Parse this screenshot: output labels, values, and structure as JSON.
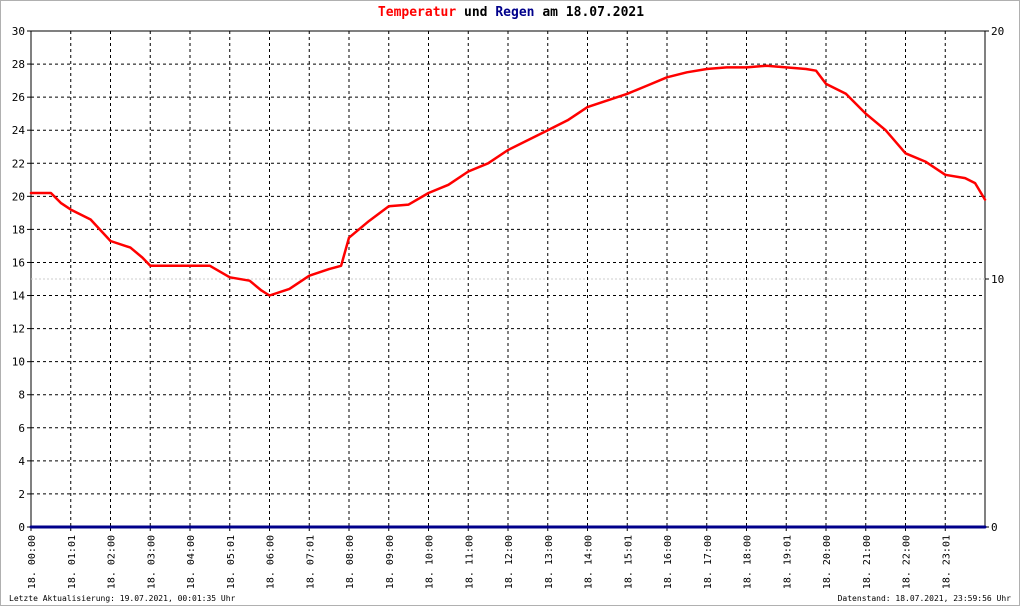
{
  "title": {
    "part1": "Temperatur",
    "part2": "und",
    "part3": "Regen",
    "part4": "am 18.07.2021"
  },
  "footer": {
    "left": "Letzte Aktualisierung: 19.07.2021, 00:01:35 Uhr",
    "right": "Datenstand: 18.07.2021, 23:59:56 Uhr"
  },
  "colors": {
    "temperature": "#ff0000",
    "rain": "#00008b",
    "grid": "#000000",
    "reference_line": "#cccccc"
  },
  "chart_data": {
    "type": "line",
    "grid": true,
    "x_unit": "hours",
    "xlim": [
      0,
      24
    ],
    "x_tick_labels": [
      "18. 00:00",
      "18. 01:01",
      "18. 02:00",
      "18. 03:00",
      "18. 04:00",
      "18. 05:01",
      "18. 06:00",
      "18. 07:01",
      "18. 08:00",
      "18. 09:00",
      "18. 10:00",
      "18. 11:00",
      "18. 12:00",
      "18. 13:00",
      "18. 14:00",
      "18. 15:01",
      "18. 16:00",
      "18. 17:00",
      "18. 18:00",
      "18. 19:01",
      "18. 20:00",
      "18. 21:00",
      "18. 22:00",
      "18. 23:01"
    ],
    "y_left": {
      "ylim": [
        0,
        30
      ],
      "ticks": [
        0,
        2,
        4,
        6,
        8,
        10,
        12,
        14,
        16,
        18,
        20,
        22,
        24,
        26,
        28,
        30
      ]
    },
    "y_right": {
      "ylim": [
        0,
        20
      ],
      "ticks": [
        0,
        10,
        20
      ]
    },
    "reference_line_right": 10,
    "series": [
      {
        "name": "Temperatur",
        "axis": "left",
        "color": "#ff0000",
        "x": [
          0,
          0.5,
          0.75,
          1.0,
          1.5,
          2.0,
          2.5,
          2.8,
          3.0,
          3.5,
          4.0,
          4.5,
          5.0,
          5.5,
          5.8,
          6.0,
          6.5,
          7.0,
          7.5,
          7.8,
          8.0,
          8.5,
          9.0,
          9.5,
          10.0,
          10.5,
          11.0,
          11.5,
          12.0,
          12.5,
          13.0,
          13.5,
          14.0,
          14.5,
          15.0,
          15.5,
          16.0,
          16.5,
          17.0,
          17.5,
          18.0,
          18.5,
          19.0,
          19.5,
          19.75,
          20.0,
          20.5,
          21.0,
          21.5,
          22.0,
          22.5,
          23.0,
          23.5,
          23.75,
          24.0
        ],
        "values": [
          20.2,
          20.2,
          19.6,
          19.2,
          18.6,
          17.3,
          16.9,
          16.3,
          15.8,
          15.8,
          15.8,
          15.8,
          15.1,
          14.9,
          14.3,
          14.0,
          14.4,
          15.2,
          15.6,
          15.8,
          17.5,
          18.5,
          19.4,
          19.5,
          20.2,
          20.7,
          21.5,
          22.0,
          22.8,
          23.4,
          24.0,
          24.6,
          25.4,
          25.8,
          26.2,
          26.7,
          27.2,
          27.5,
          27.7,
          27.8,
          27.8,
          27.9,
          27.8,
          27.7,
          27.6,
          26.8,
          26.2,
          25.0,
          24.0,
          22.6,
          22.1,
          21.3,
          21.1,
          20.8,
          19.8
        ]
      },
      {
        "name": "Regen",
        "axis": "right",
        "color": "#00008b",
        "x": [
          0,
          24
        ],
        "values": [
          0,
          0
        ]
      }
    ]
  }
}
